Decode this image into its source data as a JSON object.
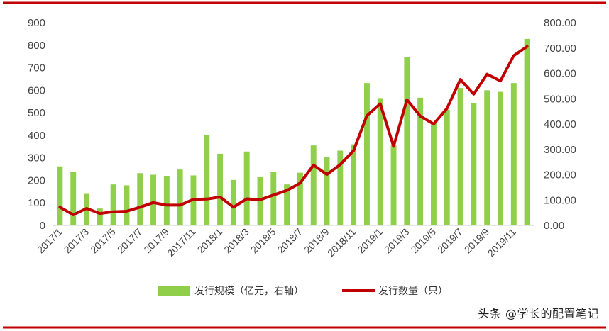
{
  "chart_data": {
    "type": "bar",
    "title": "",
    "xlabel": "",
    "ylabel": "",
    "colors": {
      "bar": "#8fcf4a",
      "line": "#c00000",
      "border": "#c00000"
    },
    "x_tick_labels": [
      "2017/1",
      "2017/3",
      "2017/5",
      "2017/7",
      "2017/9",
      "2017/11",
      "2018/1",
      "2018/3",
      "2018/5",
      "2018/7",
      "2018/9",
      "2018/11",
      "2019/1",
      "2019/3",
      "2019/5",
      "2019/7",
      "2019/9",
      "2019/11"
    ],
    "categories": [
      "2017/1",
      "2017/2",
      "2017/3",
      "2017/4",
      "2017/5",
      "2017/6",
      "2017/7",
      "2017/8",
      "2017/9",
      "2017/10",
      "2017/11",
      "2017/12",
      "2018/1",
      "2018/2",
      "2018/3",
      "2018/4",
      "2018/5",
      "2018/6",
      "2018/7",
      "2018/8",
      "2018/9",
      "2018/10",
      "2018/11",
      "2018/12",
      "2019/1",
      "2019/2",
      "2019/3",
      "2019/4",
      "2019/5",
      "2019/6",
      "2019/7",
      "2019/8",
      "2019/9",
      "2019/10",
      "2019/11",
      "2019/12"
    ],
    "y_left": {
      "ticks": [
        "0",
        "100",
        "200",
        "300",
        "400",
        "500",
        "600",
        "700",
        "800",
        "900"
      ],
      "ylim": [
        0,
        900
      ]
    },
    "y_right": {
      "ticks": [
        "0.00",
        "100.00",
        "200.00",
        "300.00",
        "400.00",
        "500.00",
        "600.00",
        "700.00",
        "800.00"
      ],
      "ylim": [
        0,
        800
      ]
    },
    "series": [
      {
        "name": "发行规模（亿元，右轴）",
        "type": "bar",
        "axis": "left",
        "values": [
          262,
          237,
          140,
          75,
          182,
          178,
          232,
          225,
          218,
          248,
          222,
          403,
          318,
          202,
          328,
          214,
          237,
          182,
          234,
          355,
          304,
          332,
          360,
          632,
          565,
          356,
          746,
          567,
          458,
          514,
          610,
          543,
          600,
          593,
          632,
          828
        ]
      },
      {
        "name": "发行数量（只）",
        "type": "line",
        "axis": "right",
        "values": [
          72,
          42,
          67,
          47,
          54,
          56,
          72,
          90,
          80,
          80,
          103,
          104,
          112,
          72,
          105,
          101,
          120,
          138,
          167,
          238,
          201,
          240,
          295,
          433,
          480,
          312,
          496,
          431,
          400,
          462,
          576,
          518,
          597,
          570,
          670,
          706
        ]
      }
    ],
    "legend_position": "bottom"
  },
  "watermark": "头条 @学长的配置笔记"
}
